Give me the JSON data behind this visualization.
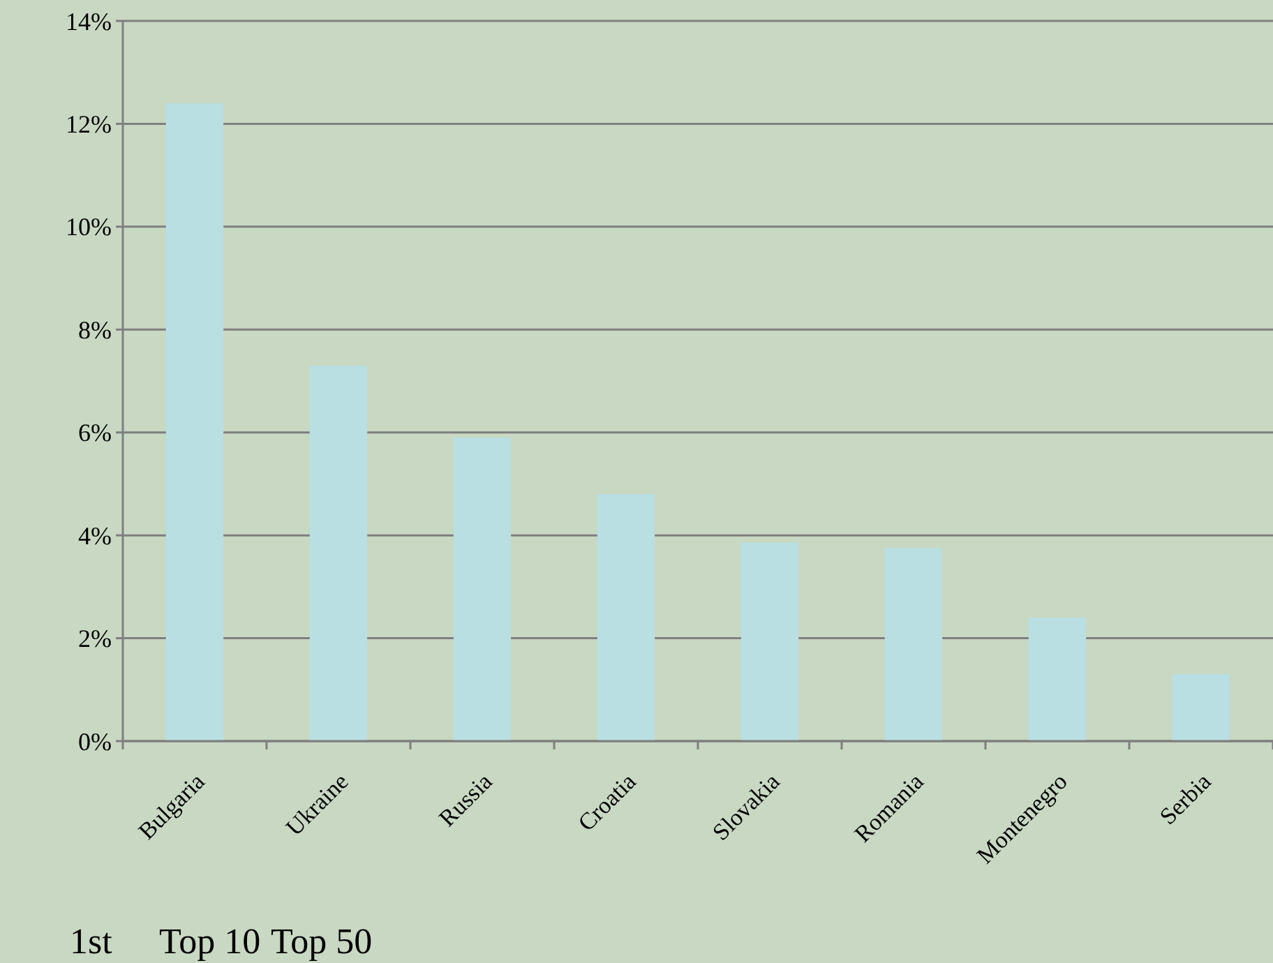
{
  "chart_data": {
    "type": "bar",
    "categories": [
      "Bulgaria",
      "Ukraine",
      "Russia",
      "Croatia",
      "Slovakia",
      "Romania",
      "Montenegro",
      "Serbia"
    ],
    "values": [
      12.4,
      7.3,
      5.9,
      4.8,
      3.86,
      3.75,
      2.4,
      1.3
    ],
    "color": "#b9dfe3",
    "ylim": [
      0,
      14
    ],
    "yticks": [
      {
        "value": 0,
        "label": "0%"
      },
      {
        "value": 2,
        "label": "2%"
      },
      {
        "value": 4,
        "label": "4%"
      },
      {
        "value": 6,
        "label": "6%"
      },
      {
        "value": 8,
        "label": "8%"
      },
      {
        "value": 10,
        "label": "10%"
      },
      {
        "value": 12,
        "label": "12%"
      },
      {
        "value": 14,
        "label": "14%"
      }
    ],
    "grid": "y",
    "annotations": [
      "1st",
      "Top 10",
      "Top 50"
    ]
  }
}
